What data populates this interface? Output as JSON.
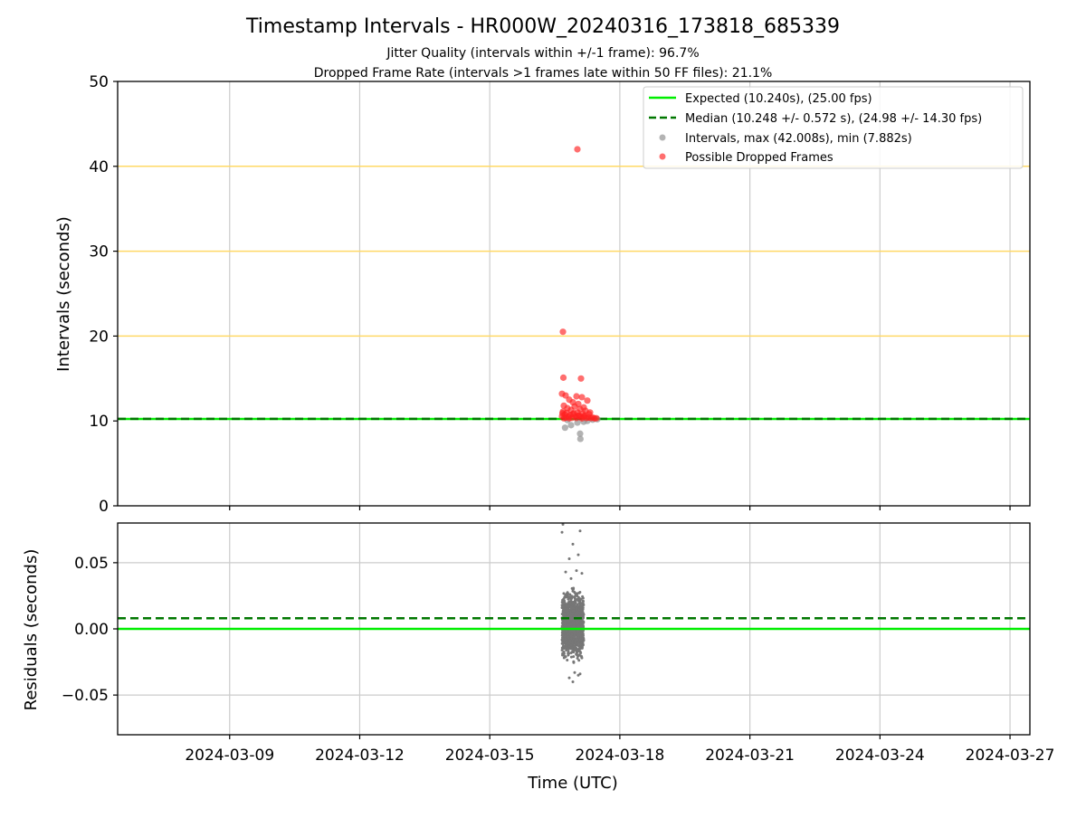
{
  "chart_data": {
    "type": "scatter",
    "title": "Timestamp Intervals - HR000W_20240316_173818_685339",
    "subtitle_lines": [
      "Jitter Quality (intervals within +/-1 frame): 96.7%",
      "Dropped Frame Rate (intervals >1 frames late within 50 FF files): 21.1%"
    ],
    "xlabel": "Time (UTC)",
    "x_tick_labels": [
      "2024-03-09",
      "2024-03-12",
      "2024-03-15",
      "2024-03-18",
      "2024-03-21",
      "2024-03-24",
      "2024-03-27"
    ],
    "x_range": [
      "2024-03-06 10:00",
      "2024-03-27 11:00"
    ],
    "grid": true,
    "top_panel": {
      "ylabel": "Intervals (seconds)",
      "ylim": [
        0,
        50
      ],
      "y_ticks": [
        0,
        10,
        20,
        30,
        40,
        50
      ],
      "y_tick_labels": [
        "0",
        "10",
        "20",
        "30",
        "40",
        "50"
      ],
      "reference_lines": [
        {
          "y": 20,
          "color": "#ffd966"
        },
        {
          "y": 30,
          "color": "#ffd966"
        },
        {
          "y": 40,
          "color": "#ffd966"
        }
      ],
      "legend_position": "top-right",
      "legend": [
        "Expected (10.240s), (25.00 fps)",
        "Median (10.248 +/- 0.572 s), (24.98 +/- 14.30 fps)",
        "Intervals, max (42.008s), min (7.882s)",
        "Possible Dropped Frames"
      ],
      "series": [
        {
          "label": "Expected",
          "style": "solid-line",
          "color": "#00ee00",
          "y": 10.24
        },
        {
          "label": "Median",
          "style": "dashed-line",
          "color": "#007700",
          "y": 10.248
        },
        {
          "label": "Intervals",
          "style": "points",
          "color": "#999999",
          "points": [
            {
              "x": "2024-03-16 17:40",
              "y": 9.2
            },
            {
              "x": "2024-03-16 21:00",
              "y": 9.5
            },
            {
              "x": "2024-03-17 00:30",
              "y": 9.8
            },
            {
              "x": "2024-03-17 02:00",
              "y": 8.5
            },
            {
              "x": "2024-03-17 02:10",
              "y": 7.882
            },
            {
              "x": "2024-03-17 04:00",
              "y": 9.9
            },
            {
              "x": "2024-03-17 06:00",
              "y": 10.0
            },
            {
              "x": "2024-03-16 19:00",
              "y": 10.1
            },
            {
              "x": "2024-03-17 09:00",
              "y": 10.15
            },
            {
              "x": "2024-03-17 11:30",
              "y": 10.2
            }
          ]
        },
        {
          "label": "Possible Dropped Frames",
          "style": "points",
          "color": "#ff2020",
          "points": [
            {
              "x": "2024-03-17 00:30",
              "y": 42.008
            },
            {
              "x": "2024-03-16 16:30",
              "y": 20.5
            },
            {
              "x": "2024-03-16 16:45",
              "y": 15.1
            },
            {
              "x": "2024-03-17 02:30",
              "y": 15.0
            },
            {
              "x": "2024-03-16 16:00",
              "y": 13.2
            },
            {
              "x": "2024-03-16 18:00",
              "y": 13.0
            },
            {
              "x": "2024-03-17 00:00",
              "y": 12.9
            },
            {
              "x": "2024-03-17 03:00",
              "y": 12.8
            },
            {
              "x": "2024-03-17 06:00",
              "y": 12.4
            },
            {
              "x": "2024-03-16 20:00",
              "y": 12.5
            },
            {
              "x": "2024-03-16 22:00",
              "y": 12.2
            },
            {
              "x": "2024-03-17 01:00",
              "y": 12.0
            },
            {
              "x": "2024-03-16 17:00",
              "y": 11.8
            },
            {
              "x": "2024-03-16 23:00",
              "y": 11.7
            },
            {
              "x": "2024-03-17 04:00",
              "y": 11.6
            },
            {
              "x": "2024-03-16 19:00",
              "y": 11.5
            },
            {
              "x": "2024-03-17 02:00",
              "y": 11.4
            },
            {
              "x": "2024-03-16 21:00",
              "y": 11.3
            },
            {
              "x": "2024-03-17 05:00",
              "y": 11.2
            },
            {
              "x": "2024-03-16 16:30",
              "y": 11.1
            },
            {
              "x": "2024-03-17 00:30",
              "y": 11.0
            },
            {
              "x": "2024-03-16 18:30",
              "y": 10.95
            },
            {
              "x": "2024-03-16 22:30",
              "y": 10.9
            },
            {
              "x": "2024-03-17 03:30",
              "y": 10.85
            },
            {
              "x": "2024-03-17 07:00",
              "y": 10.8
            },
            {
              "x": "2024-03-16 17:30",
              "y": 10.75
            },
            {
              "x": "2024-03-16 20:30",
              "y": 10.7
            },
            {
              "x": "2024-03-17 01:30",
              "y": 10.65
            },
            {
              "x": "2024-03-17 04:30",
              "y": 10.6
            },
            {
              "x": "2024-03-16 16:00",
              "y": 10.55
            },
            {
              "x": "2024-03-16 19:30",
              "y": 10.5
            },
            {
              "x": "2024-03-16 23:30",
              "y": 10.5
            },
            {
              "x": "2024-03-17 02:30",
              "y": 10.45
            },
            {
              "x": "2024-03-17 06:30",
              "y": 10.4
            },
            {
              "x": "2024-03-17 09:00",
              "y": 10.4
            },
            {
              "x": "2024-03-16 18:00",
              "y": 10.38
            },
            {
              "x": "2024-03-16 21:30",
              "y": 10.36
            },
            {
              "x": "2024-03-17 00:00",
              "y": 10.35
            },
            {
              "x": "2024-03-17 05:30",
              "y": 10.34
            },
            {
              "x": "2024-03-17 08:00",
              "y": 10.33
            },
            {
              "x": "2024-03-17 11:00",
              "y": 10.32
            },
            {
              "x": "2024-03-16 17:00",
              "y": 10.31
            },
            {
              "x": "2024-03-16 20:00",
              "y": 10.31
            },
            {
              "x": "2024-03-17 03:00",
              "y": 10.3
            },
            {
              "x": "2024-03-17 10:00",
              "y": 10.3
            },
            {
              "x": "2024-03-16 22:00",
              "y": 10.8
            },
            {
              "x": "2024-03-17 01:00",
              "y": 10.6
            },
            {
              "x": "2024-03-17 07:30",
              "y": 11.0
            },
            {
              "x": "2024-03-16 16:15",
              "y": 10.9
            },
            {
              "x": "2024-03-17 04:00",
              "y": 10.5
            }
          ]
        }
      ]
    },
    "bottom_panel": {
      "ylabel": "Residuals (seconds)",
      "ylim": [
        -0.08,
        0.08
      ],
      "y_ticks": [
        -0.05,
        0,
        0.05
      ],
      "y_tick_labels": [
        "−0.05",
        "0.00",
        "0.05"
      ],
      "series": [
        {
          "label": "Expected",
          "style": "solid-line",
          "color": "#00ee00",
          "y": 0.0
        },
        {
          "label": "Median",
          "style": "dashed-line",
          "color": "#007700",
          "y": 0.008
        },
        {
          "label": "Residuals",
          "style": "points",
          "color": "#777777",
          "points": [
            {
              "x": "2024-03-16 16:30",
              "y": 0.079
            },
            {
              "x": "2024-03-16 16:00",
              "y": 0.073
            },
            {
              "x": "2024-03-17 02:00",
              "y": 0.074
            },
            {
              "x": "2024-03-16 22:00",
              "y": 0.064
            },
            {
              "x": "2024-03-17 01:00",
              "y": 0.056
            },
            {
              "x": "2024-03-16 20:00",
              "y": 0.053
            },
            {
              "x": "2024-03-17 00:00",
              "y": 0.044
            },
            {
              "x": "2024-03-16 18:00",
              "y": 0.043
            },
            {
              "x": "2024-03-17 03:00",
              "y": 0.042
            },
            {
              "x": "2024-03-16 21:00",
              "y": 0.038
            },
            {
              "x": "2024-03-16 23:00",
              "y": -0.033
            },
            {
              "x": "2024-03-17 01:00",
              "y": -0.035
            },
            {
              "x": "2024-03-16 20:00",
              "y": -0.037
            },
            {
              "x": "2024-03-16 22:00",
              "y": -0.04
            },
            {
              "x": "2024-03-17 02:00",
              "y": -0.034
            }
          ],
          "dense_cluster": {
            "x_range": [
              "2024-03-16 16:00",
              "2024-03-17 04:00"
            ],
            "y_range": [
              -0.03,
              0.035
            ],
            "count": 1200
          }
        }
      ]
    }
  }
}
